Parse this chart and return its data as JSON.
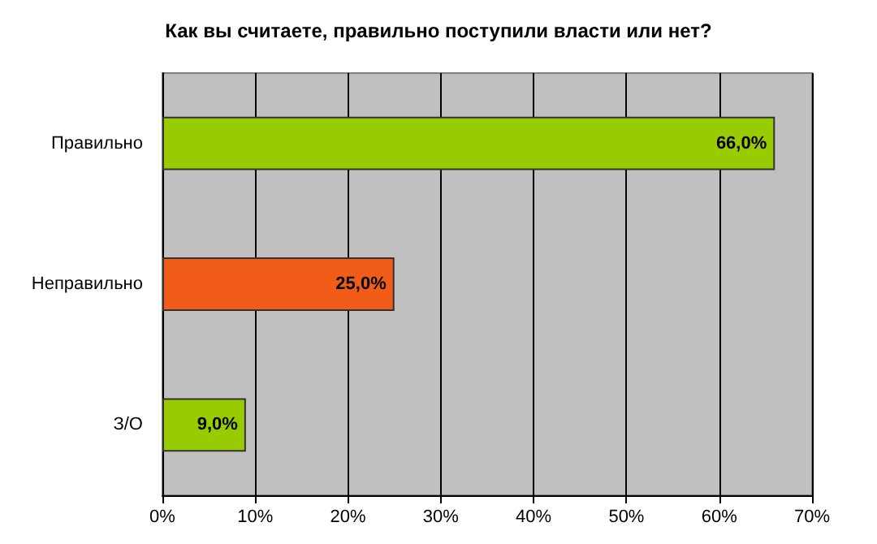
{
  "chart_data": {
    "type": "bar",
    "orientation": "horizontal",
    "title": "Как вы считаете, правильно поступили власти или нет?",
    "categories": [
      "Правильно",
      "Неправильно",
      "З/О"
    ],
    "values": [
      66,
      25,
      9
    ],
    "colors": [
      "#99cc00",
      "#f25c19",
      "#99cc00"
    ],
    "value_labels": [
      "66,0%",
      "25,0%",
      "9,0%"
    ],
    "xlim": [
      0,
      70
    ],
    "xticks": [
      {
        "value": 0,
        "label": "0%"
      },
      {
        "value": 10,
        "label": "10%"
      },
      {
        "value": 20,
        "label": "20%"
      },
      {
        "value": 30,
        "label": "30%"
      },
      {
        "value": 40,
        "label": "40%"
      },
      {
        "value": 50,
        "label": "50%"
      },
      {
        "value": 60,
        "label": "60%"
      },
      {
        "value": 70,
        "label": "70%"
      }
    ],
    "grid": "x"
  }
}
